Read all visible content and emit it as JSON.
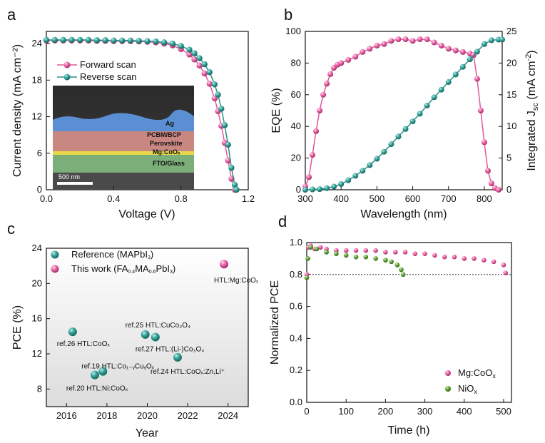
{
  "panel_letters": [
    "a",
    "b",
    "c",
    "d"
  ],
  "colors": {
    "pink": "#e0589b",
    "teal": "#2a8f87",
    "green": "#5a9a2e",
    "pink_light": "#ec7fb4"
  },
  "chart_data": [
    {
      "panel": "a",
      "type": "line",
      "xlabel": "Voltage (V)",
      "ylabel": "Current density (mA cm⁻²)",
      "xlim": [
        0,
        1.2
      ],
      "ylim": [
        0,
        26
      ],
      "xticks": [
        "0.0",
        "0.4",
        "0.8",
        "1.2"
      ],
      "yticks": [
        "0",
        "6",
        "12",
        "18",
        "24"
      ],
      "legend_position": "top-center",
      "series": [
        {
          "name": "Forward scan",
          "color": "#e0589b",
          "x": [
            0,
            0.05,
            0.1,
            0.15,
            0.2,
            0.25,
            0.3,
            0.35,
            0.4,
            0.45,
            0.5,
            0.55,
            0.6,
            0.65,
            0.7,
            0.75,
            0.8,
            0.85,
            0.88,
            0.91,
            0.94,
            0.97,
            1.0,
            1.02,
            1.04,
            1.06,
            1.08,
            1.1,
            1.12
          ],
          "y": [
            24.5,
            24.5,
            24.5,
            24.5,
            24.5,
            24.5,
            24.45,
            24.45,
            24.4,
            24.4,
            24.4,
            24.35,
            24.3,
            24.2,
            24.0,
            23.7,
            23.1,
            22.2,
            21.4,
            20.4,
            19.1,
            17.4,
            15.0,
            12.9,
            10.5,
            7.7,
            4.8,
            1.8,
            0.0
          ]
        },
        {
          "name": "Reverse scan",
          "color": "#2a8f87",
          "x": [
            0,
            0.05,
            0.1,
            0.15,
            0.2,
            0.25,
            0.3,
            0.35,
            0.4,
            0.45,
            0.5,
            0.55,
            0.6,
            0.65,
            0.7,
            0.75,
            0.8,
            0.85,
            0.88,
            0.91,
            0.94,
            0.97,
            1.0,
            1.02,
            1.04,
            1.06,
            1.08,
            1.1,
            1.12,
            1.13
          ],
          "y": [
            24.6,
            24.6,
            24.6,
            24.6,
            24.6,
            24.6,
            24.55,
            24.55,
            24.5,
            24.5,
            24.5,
            24.45,
            24.4,
            24.35,
            24.2,
            24.0,
            23.6,
            23.0,
            22.4,
            21.6,
            20.6,
            19.3,
            17.3,
            15.6,
            13.3,
            10.6,
            7.4,
            3.6,
            0.8,
            0.0
          ]
        }
      ],
      "inset": {
        "labels": [
          "Ag",
          "PCBM/BCP",
          "Perovskite",
          "Mg:CoOₓ",
          "FTO/Glass"
        ],
        "scale_bar": "500 nm"
      }
    },
    {
      "panel": "b",
      "type": "line",
      "xlabel": "Wavelength (nm)",
      "ylabel": "EQE (%)",
      "y2label": "Integrated Jsc (mA cm⁻²)",
      "xlim": [
        300,
        850
      ],
      "ylim": [
        0,
        100
      ],
      "y2lim": [
        0,
        25
      ],
      "xticks": [
        "300",
        "400",
        "500",
        "600",
        "700",
        "800"
      ],
      "yticks": [
        "0",
        "20",
        "40",
        "60",
        "80",
        "100"
      ],
      "y2ticks": [
        "0",
        "5",
        "10",
        "15",
        "20",
        "25"
      ],
      "series": [
        {
          "name": "EQE",
          "color": "#e0589b",
          "axis": "left",
          "x": [
            300,
            310,
            320,
            330,
            340,
            350,
            360,
            370,
            380,
            390,
            400,
            420,
            440,
            460,
            480,
            500,
            520,
            540,
            560,
            580,
            600,
            620,
            640,
            660,
            680,
            700,
            720,
            740,
            760,
            770,
            780,
            790,
            800,
            810,
            820,
            830,
            840
          ],
          "y": [
            2,
            8,
            22,
            37,
            50,
            60,
            67,
            73,
            77,
            79,
            80,
            82,
            84,
            87,
            89,
            91,
            92,
            94,
            95,
            95,
            94,
            95,
            95,
            93,
            91,
            89,
            88,
            87,
            86,
            85,
            70,
            50,
            30,
            12,
            4,
            1,
            0
          ]
        },
        {
          "name": "Integrated Jsc",
          "color": "#2a8f87",
          "axis": "right",
          "x": [
            300,
            320,
            340,
            360,
            380,
            400,
            420,
            440,
            460,
            480,
            500,
            520,
            540,
            560,
            580,
            600,
            620,
            640,
            660,
            680,
            700,
            720,
            740,
            760,
            780,
            800,
            820,
            840,
            850
          ],
          "y": [
            0,
            0.05,
            0.1,
            0.25,
            0.5,
            0.9,
            1.5,
            2.2,
            3.0,
            3.9,
            4.9,
            6.0,
            7.2,
            8.4,
            9.6,
            10.8,
            12.0,
            13.3,
            14.6,
            15.8,
            17.0,
            18.2,
            19.4,
            20.6,
            21.8,
            23.0,
            23.6,
            23.7,
            23.7
          ]
        }
      ]
    },
    {
      "panel": "c",
      "type": "scatter",
      "xlabel": "Year",
      "ylabel": "PCE (%)",
      "xlim": [
        2015,
        2025
      ],
      "ylim": [
        6,
        24
      ],
      "xticks": [
        "2016",
        "2018",
        "2020",
        "2022",
        "2024"
      ],
      "yticks": [
        "8",
        "12",
        "16",
        "20",
        "24"
      ],
      "legend_position": "top-left",
      "series": [
        {
          "name": "Reference (MAPbI₃)",
          "color": "#2a8f87",
          "points": [
            {
              "x": 2016.3,
              "y": 14.5,
              "label": "ref.26 HTL:CoOₓ"
            },
            {
              "x": 2017.4,
              "y": 9.6,
              "label": "ref.20 HTL:Ni:CoOₓ"
            },
            {
              "x": 2017.8,
              "y": 10.0,
              "label": "ref.19 HTL:Co₁₋ᵧCuᵧOₓ"
            },
            {
              "x": 2019.9,
              "y": 14.2,
              "label": "ref.25 HTL:CuCo₂O₄"
            },
            {
              "x": 2020.4,
              "y": 13.9,
              "label": "ref.27 HTL:(Li-)Co₃O₄"
            },
            {
              "x": 2021.5,
              "y": 11.6,
              "label": "ref.24 HTL:CoOₓ:Zn,Li⁺"
            }
          ]
        },
        {
          "name": "This work (FA₀.₄MA₀.₆PbI₃)",
          "color": "#e0589b",
          "points": [
            {
              "x": 2023.8,
              "y": 22.2,
              "label": "HTL:Mg:CoOₓ"
            }
          ]
        }
      ]
    },
    {
      "panel": "d",
      "type": "scatter",
      "xlabel": "Time (h)",
      "ylabel": "Normalized PCE",
      "xlim": [
        0,
        520
      ],
      "ylim": [
        0,
        1.0
      ],
      "xticks": [
        "0",
        "100",
        "200",
        "300",
        "400",
        "500"
      ],
      "yticks": [
        "0.0",
        "0.2",
        "0.4",
        "0.6",
        "0.8",
        "1.0"
      ],
      "reference_line": 0.8,
      "legend_position": "bottom-right",
      "series": [
        {
          "name": "Mg:CoOₓ",
          "color": "#ec7fb4",
          "x": [
            0,
            4,
            10,
            20,
            35,
            50,
            75,
            100,
            125,
            150,
            175,
            200,
            225,
            250,
            275,
            300,
            325,
            350,
            375,
            400,
            425,
            450,
            475,
            500,
            505
          ],
          "y": [
            0.8,
            0.97,
            0.98,
            0.96,
            0.97,
            0.96,
            0.95,
            0.95,
            0.95,
            0.95,
            0.95,
            0.94,
            0.94,
            0.94,
            0.93,
            0.93,
            0.92,
            0.91,
            0.91,
            0.9,
            0.9,
            0.89,
            0.88,
            0.86,
            0.81
          ]
        },
        {
          "name": "NiOₓ",
          "color": "#5a9a2e",
          "x": [
            0,
            3,
            10,
            25,
            50,
            75,
            100,
            125,
            150,
            175,
            200,
            215,
            230,
            240,
            245
          ],
          "y": [
            0.78,
            0.9,
            0.97,
            0.96,
            0.94,
            0.93,
            0.92,
            0.91,
            0.91,
            0.9,
            0.89,
            0.88,
            0.86,
            0.83,
            0.8
          ]
        }
      ]
    }
  ]
}
